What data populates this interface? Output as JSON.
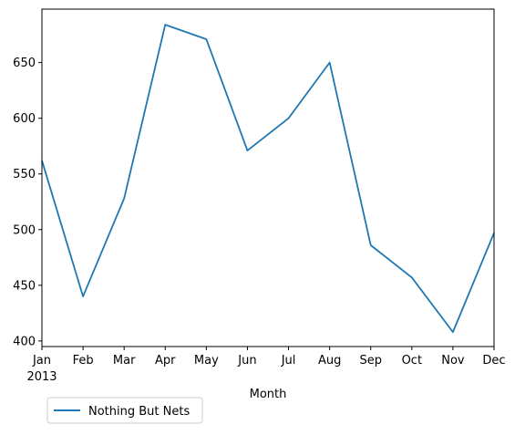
{
  "chart_data": {
    "type": "line",
    "title": "",
    "xlabel": "Month",
    "ylabel": "",
    "x": [
      "Jan",
      "Feb",
      "Mar",
      "Apr",
      "May",
      "Jun",
      "Jul",
      "Aug",
      "Sep",
      "Oct",
      "Nov",
      "Dec"
    ],
    "x_tick_labels": [
      "Jan",
      "Feb",
      "Mar",
      "Apr",
      "May",
      "Jun",
      "Jul",
      "Aug",
      "Sep",
      "Oct",
      "Nov",
      "Dec"
    ],
    "x_year_label": "2013",
    "ylim": [
      395,
      698
    ],
    "yticks": [
      400,
      450,
      500,
      550,
      600,
      650
    ],
    "grid": false,
    "legend_position": "below-left",
    "series": [
      {
        "name": "Nothing But Nets",
        "color": "#1f77b4",
        "values": [
          562,
          440,
          528,
          684,
          671,
          571,
          600,
          650,
          486,
          457,
          408,
          497
        ]
      }
    ]
  }
}
